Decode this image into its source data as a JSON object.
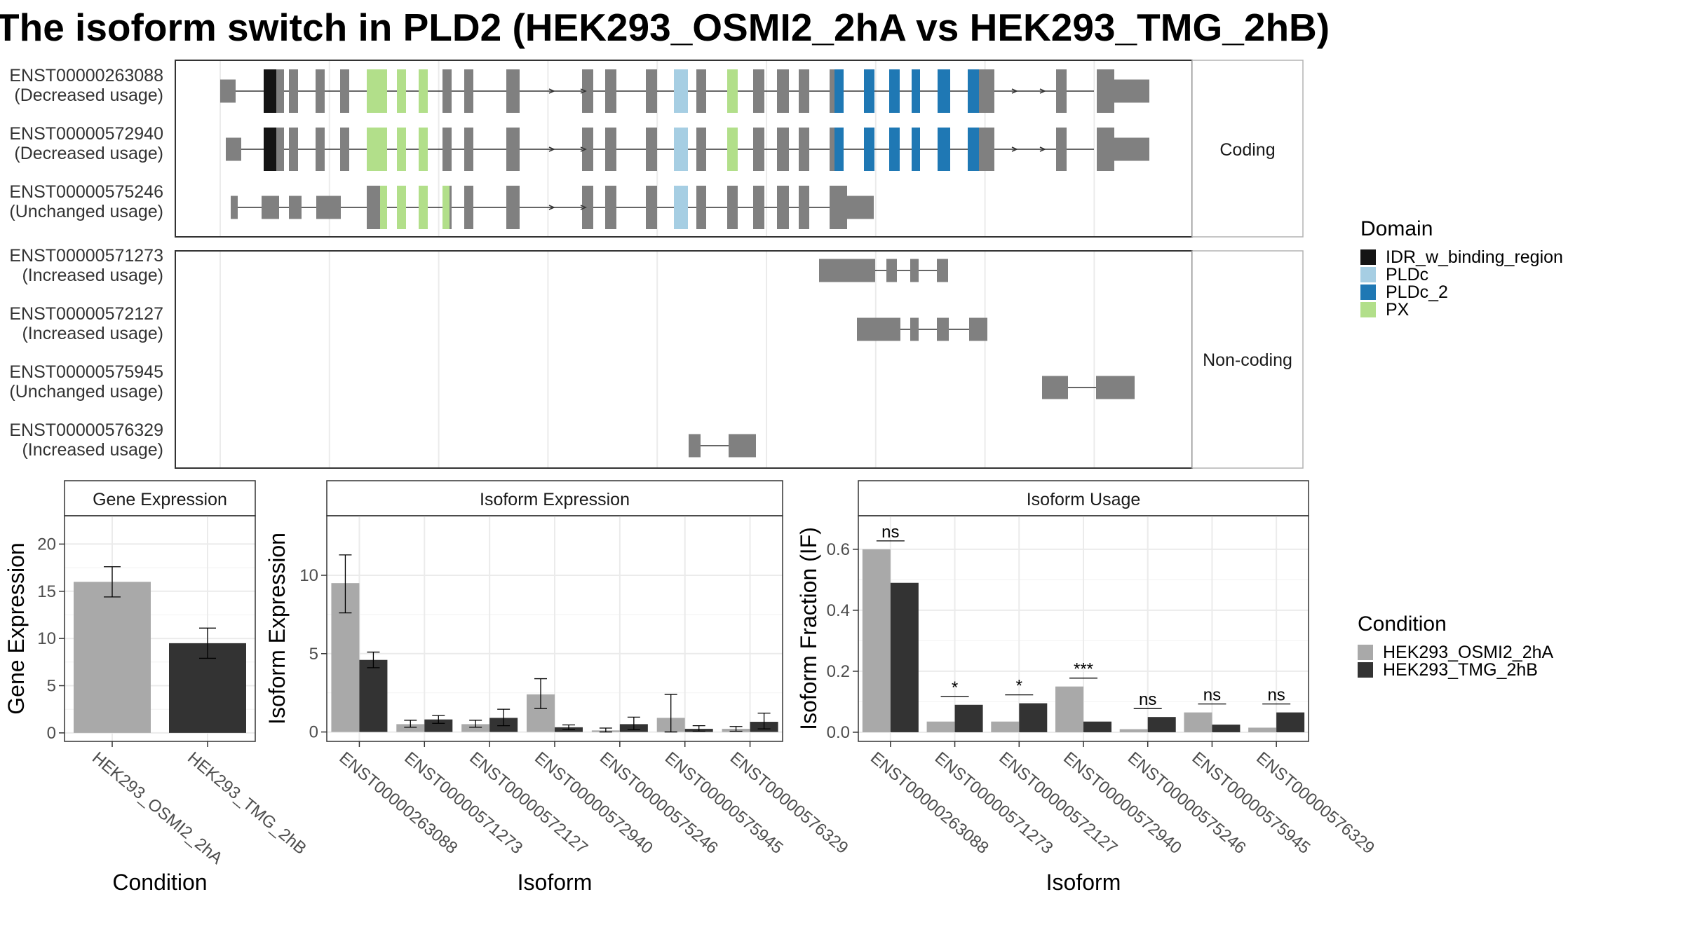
{
  "title": "The isoform switch in PLD2 (HEK293_OSMI2_2hA vs HEK293_TMG_2hB)",
  "transcript_panel": {
    "coding_label": "Coding",
    "noncoding_label": "Non-coding",
    "coding": [
      {
        "id": "ENST00000263088",
        "usage": "(Decreased usage)"
      },
      {
        "id": "ENST00000572940",
        "usage": "(Decreased usage)"
      },
      {
        "id": "ENST00000575246",
        "usage": "(Unchanged usage)"
      }
    ],
    "noncoding": [
      {
        "id": "ENST00000571273",
        "usage": "(Increased usage)"
      },
      {
        "id": "ENST00000572127",
        "usage": "(Increased usage)"
      },
      {
        "id": "ENST00000575945",
        "usage": "(Unchanged usage)"
      },
      {
        "id": "ENST00000576329",
        "usage": "(Increased usage)"
      }
    ]
  },
  "domain_legend": {
    "title": "Domain",
    "items": [
      {
        "label": "IDR_w_binding_region",
        "color": "#141414"
      },
      {
        "label": "PLDc",
        "color": "#a6cee3"
      },
      {
        "label": "PLDc_2",
        "color": "#1f78b4"
      },
      {
        "label": "PX",
        "color": "#b2df8a"
      }
    ]
  },
  "condition_legend": {
    "title": "Condition",
    "items": [
      {
        "label": "HEK293_OSMI2_2hA",
        "color": "#a9a9a9"
      },
      {
        "label": "HEK293_TMG_2hB",
        "color": "#333333"
      }
    ]
  },
  "chart_data": [
    {
      "type": "bar",
      "title": "Gene Expression",
      "xlabel": "Condition",
      "ylabel": "Gene Expression",
      "categories": [
        "HEK293_OSMI2_2hA",
        "HEK293_TMG_2hB"
      ],
      "values": [
        16.0,
        9.5
      ],
      "error_low": [
        14.4,
        7.9
      ],
      "error_high": [
        17.6,
        11.1
      ],
      "ylim": [
        -0.9,
        23
      ],
      "yticks": [
        0,
        5,
        10,
        15,
        20
      ]
    },
    {
      "type": "bar",
      "title": "Isoform Expression",
      "xlabel": "Isoform",
      "ylabel": "Isoform Expression",
      "categories": [
        "ENST00000263088",
        "ENST00000571273",
        "ENST00000572127",
        "ENST00000572940",
        "ENST00000575246",
        "ENST00000575945",
        "ENST00000576329"
      ],
      "series": [
        {
          "name": "HEK293_OSMI2_2hA",
          "values": [
            9.5,
            0.5,
            0.5,
            2.4,
            0.1,
            0.9,
            0.2
          ],
          "error_low": [
            7.6,
            0.3,
            0.3,
            1.5,
            0.0,
            0.0,
            0.05
          ],
          "error_high": [
            11.3,
            0.75,
            0.75,
            3.4,
            0.25,
            2.4,
            0.35
          ]
        },
        {
          "name": "HEK293_TMG_2hB",
          "values": [
            4.6,
            0.8,
            0.9,
            0.3,
            0.5,
            0.2,
            0.65
          ],
          "error_low": [
            4.1,
            0.55,
            0.4,
            0.15,
            0.15,
            0.05,
            0.2
          ],
          "error_high": [
            5.1,
            1.05,
            1.45,
            0.45,
            0.95,
            0.4,
            1.2
          ]
        }
      ],
      "ylim": [
        -0.6,
        13.8
      ],
      "yticks": [
        0,
        5,
        10
      ]
    },
    {
      "type": "bar",
      "title": "Isoform Usage",
      "xlabel": "Isoform",
      "ylabel": "Isoform Fraction (IF)",
      "categories": [
        "ENST00000263088",
        "ENST00000571273",
        "ENST00000572127",
        "ENST00000572940",
        "ENST00000575246",
        "ENST00000575945",
        "ENST00000576329"
      ],
      "series": [
        {
          "name": "HEK293_OSMI2_2hA",
          "values": [
            0.6,
            0.035,
            0.035,
            0.15,
            0.01,
            0.065,
            0.015
          ]
        },
        {
          "name": "HEK293_TMG_2hB",
          "values": [
            0.49,
            0.09,
            0.095,
            0.035,
            0.05,
            0.025,
            0.065
          ]
        }
      ],
      "significance": [
        "ns",
        "*",
        "*",
        "***",
        "ns",
        "ns",
        "ns"
      ],
      "ylim": [
        -0.03,
        0.71
      ],
      "yticks": [
        0.0,
        0.2,
        0.4,
        0.6
      ],
      "ytick_labels": [
        "0.0",
        "0.2",
        "0.4",
        "0.6"
      ]
    }
  ]
}
